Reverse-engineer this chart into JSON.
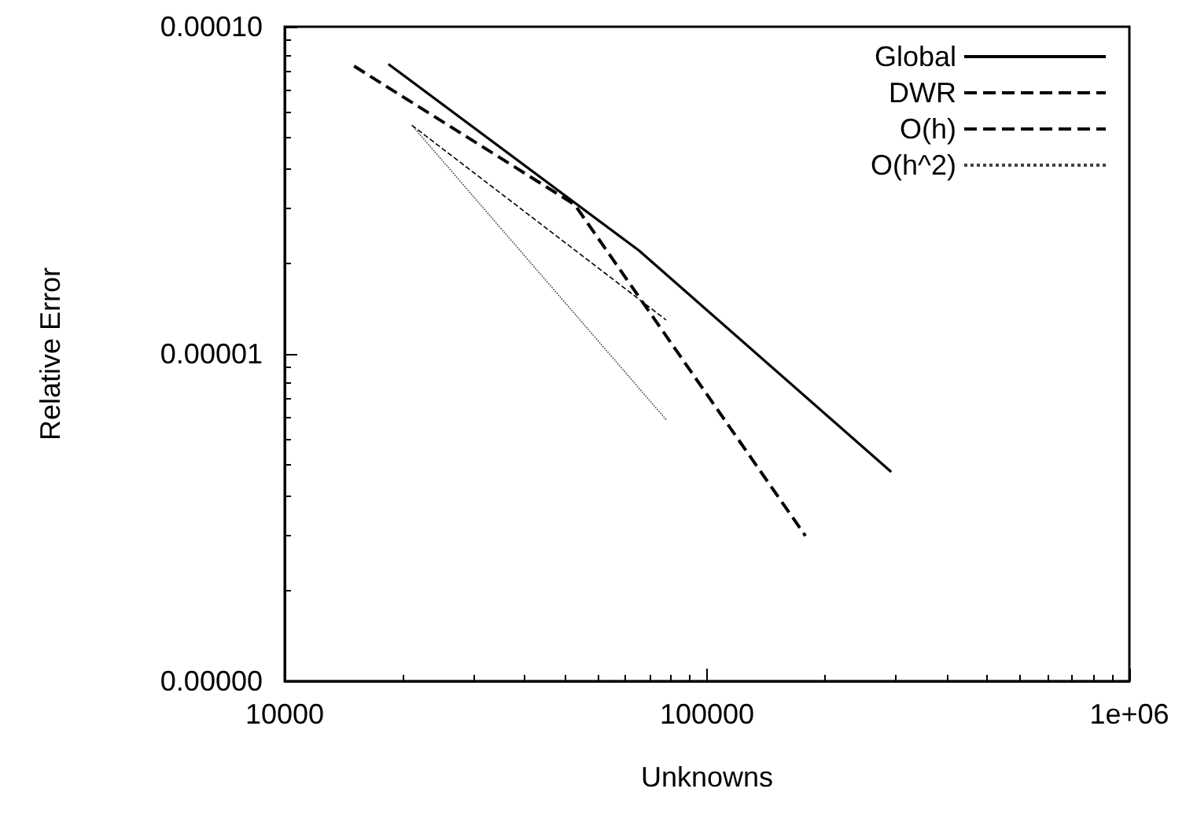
{
  "chart_data": {
    "type": "line",
    "xlabel": "Unknowns",
    "ylabel": "Relative Error",
    "log": "xy",
    "xlim": [
      10000,
      1000000
    ],
    "xticks": [
      {
        "value": 10000,
        "label": "10000"
      },
      {
        "value": 100000,
        "label": "100000"
      },
      {
        "value": 1000000,
        "label": "1e+06"
      }
    ],
    "ylim": [
      1e-06,
      0.0001
    ],
    "yticks": [
      {
        "value": 0.0001,
        "label": "0.00010"
      },
      {
        "value": 1e-05,
        "label": "0.00001"
      },
      {
        "value": 1e-06,
        "label": "0.00000"
      }
    ],
    "grid": false,
    "legend": "top right",
    "marker": "none",
    "series": [
      {
        "name": "Global",
        "color": "#000000",
        "line_style": "solid",
        "x": [
          17600,
          69000,
          273000
        ],
        "values": [
          7.69e-05,
          2.07e-05,
          4.36e-06
        ]
      },
      {
        "name": "DWR",
        "color": "#000000",
        "line_style": "dashed",
        "x": [
          14600,
          48600,
          171000
        ],
        "values": [
          7.58e-05,
          2.86e-05,
          2.78e-06
        ]
      },
      {
        "name": "O(h)",
        "color": "#000000",
        "line_style": "dashed",
        "x": [
          20000,
          80000
        ],
        "values": [
          5e-05,
          1.27e-05
        ]
      },
      {
        "name": "O(h^2)",
        "color": "#444444",
        "line_style": "dotted",
        "x": [
          20000,
          80000
        ],
        "values": [
          5e-05,
          6.3e-06
        ]
      }
    ]
  }
}
